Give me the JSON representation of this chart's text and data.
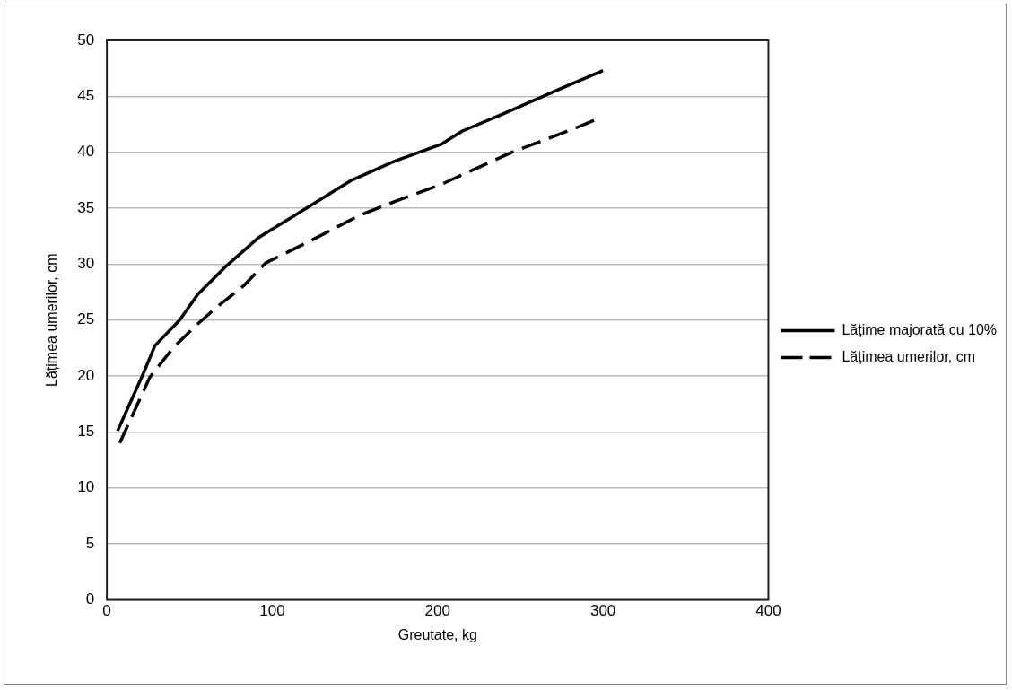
{
  "chart_data": {
    "type": "line",
    "xlabel": "Greutate, kg",
    "ylabel": "Lățimea umerilor, cm",
    "xlim": [
      0,
      400
    ],
    "xticks": [
      0,
      100,
      200,
      300,
      400
    ],
    "ylim": [
      0,
      50
    ],
    "yticks": [
      0,
      5,
      10,
      15,
      20,
      25,
      30,
      35,
      40,
      45,
      50
    ],
    "grid": "y",
    "legend": "right",
    "marker": "none",
    "series": [
      {
        "name": "Lățime majorată cu 10%",
        "color": "#000000",
        "line_style": "solid",
        "x": [
          6.5,
          22,
          29,
          44,
          55,
          72,
          92,
          113,
          148,
          174,
          202,
          215,
          239,
          273,
          300
        ],
        "values": [
          15.1,
          20.2,
          22.7,
          25.0,
          27.3,
          29.8,
          32.4,
          34.3,
          37.5,
          39.2,
          40.7,
          41.9,
          43.4,
          45.6,
          47.3
        ]
      },
      {
        "name": "Lățimea umerilor, cm",
        "color": "#000000",
        "line_style": "dashed",
        "x": [
          7.8,
          26,
          40,
          53,
          66,
          83,
          96,
          122,
          152,
          174,
          202,
          215,
          245,
          284,
          297
        ],
        "values": [
          14.0,
          19.9,
          22.5,
          24.4,
          26.1,
          28.1,
          30.1,
          32.0,
          34.3,
          35.6,
          37.1,
          38.0,
          40.0,
          42.2,
          43.0
        ]
      }
    ]
  }
}
